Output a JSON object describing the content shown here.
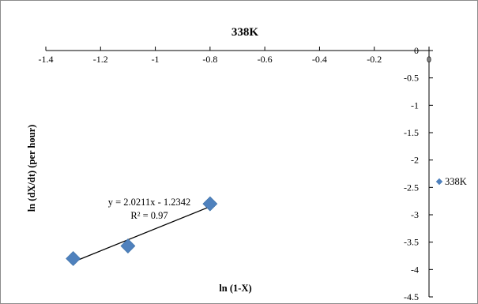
{
  "chart_data": {
    "type": "scatter",
    "title": "338K",
    "xlabel": "ln (1-X)",
    "ylabel": "ln (dX/dt) (per hour)",
    "xlim": [
      -1.4,
      0
    ],
    "ylim": [
      -4.5,
      0
    ],
    "x_ticks": [
      "-1.4",
      "-1.2",
      "-1",
      "-0.8",
      "-0.6",
      "-0.4",
      "-0.2",
      "0"
    ],
    "y_ticks": [
      "0",
      "-0.5",
      "-1",
      "-1.5",
      "-2",
      "-2.5",
      "-3",
      "-3.5",
      "-4",
      "-4.5"
    ],
    "x_tick_values": [
      -1.4,
      -1.2,
      -1.0,
      -0.8,
      -0.6,
      -0.4,
      -0.2,
      0
    ],
    "y_tick_values": [
      0,
      -0.5,
      -1.0,
      -1.5,
      -2.0,
      -2.5,
      -3.0,
      -3.5,
      -4.0,
      -4.5
    ],
    "series": [
      {
        "name": "338K",
        "x": [
          -1.3,
          -1.1,
          -0.8
        ],
        "y": [
          -3.8,
          -3.57,
          -2.8
        ],
        "marker": "diamond",
        "color": "#4f81bd"
      }
    ],
    "trendline": {
      "slope": 2.0211,
      "intercept": -1.2342,
      "x_range": [
        -1.3,
        -0.8
      ],
      "equation": "y = 2.0211x - 1.2342",
      "r2": "R² = 0.97",
      "color": "#000000"
    },
    "legend": {
      "position": "right",
      "label": "338K"
    },
    "grid": false
  }
}
